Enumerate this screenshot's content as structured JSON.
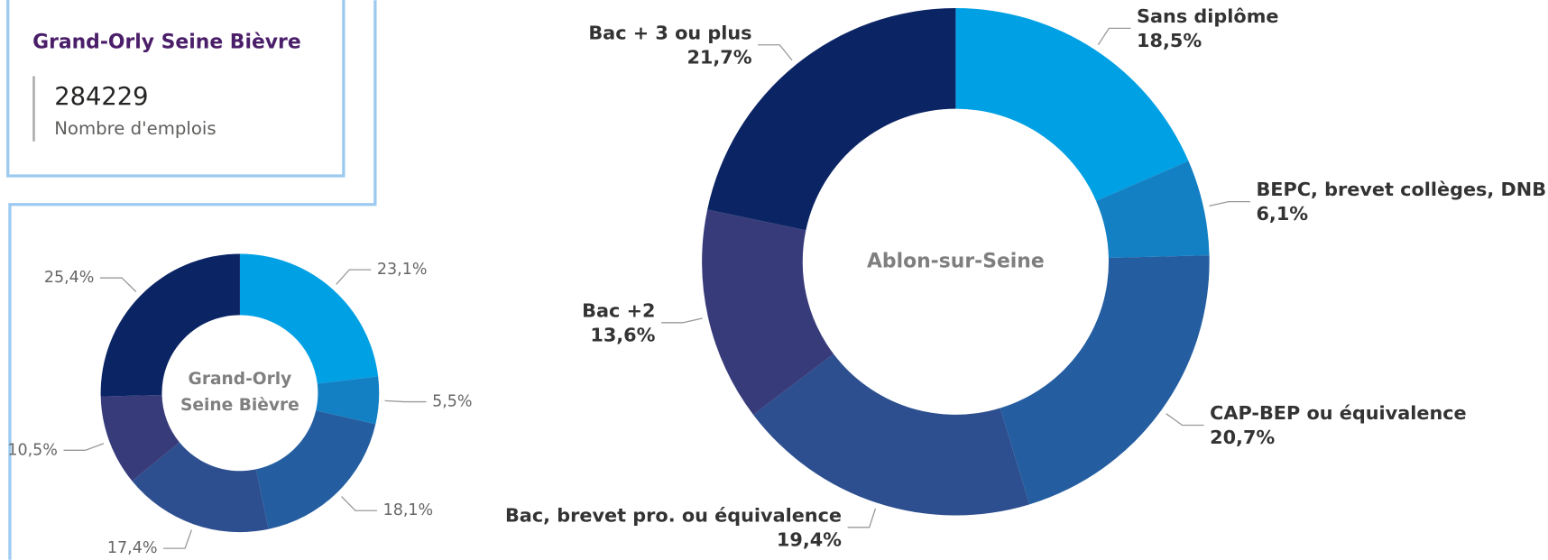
{
  "card": {
    "title": "Grand-Orly Seine Bièvre",
    "value": "284229",
    "label": "Nombre d'emplois"
  },
  "chart_data": [
    {
      "type": "donut",
      "center_label": "Grand-Orly Seine Bièvre",
      "values": [
        23.1,
        5.5,
        18.1,
        17.4,
        10.5,
        25.4
      ],
      "value_labels": [
        "23,1%",
        "5,5%",
        "18,1%",
        "17,4%",
        "10,5%",
        "25,4%"
      ],
      "colors": [
        "#00a0e4",
        "#1380c4",
        "#245ea1",
        "#2d4f8f",
        "#373b7a",
        "#0b2464"
      ]
    },
    {
      "type": "donut",
      "center_label": "Ablon-sur-Seine",
      "categories": [
        "Sans diplôme",
        "BEPC, brevet collèges, DNB",
        "CAP-BEP ou équivalence",
        "Bac, brevet pro. ou équivalence",
        "Bac +2",
        "Bac + 3 ou plus"
      ],
      "values": [
        18.5,
        6.1,
        20.7,
        19.4,
        13.6,
        21.7
      ],
      "value_labels": [
        "18,5%",
        "6,1%",
        "20,7%",
        "19,4%",
        "13,6%",
        "21,7%"
      ],
      "colors": [
        "#00a0e4",
        "#1380c4",
        "#245ea1",
        "#2d4f8f",
        "#373b7a",
        "#0b2464"
      ]
    }
  ]
}
